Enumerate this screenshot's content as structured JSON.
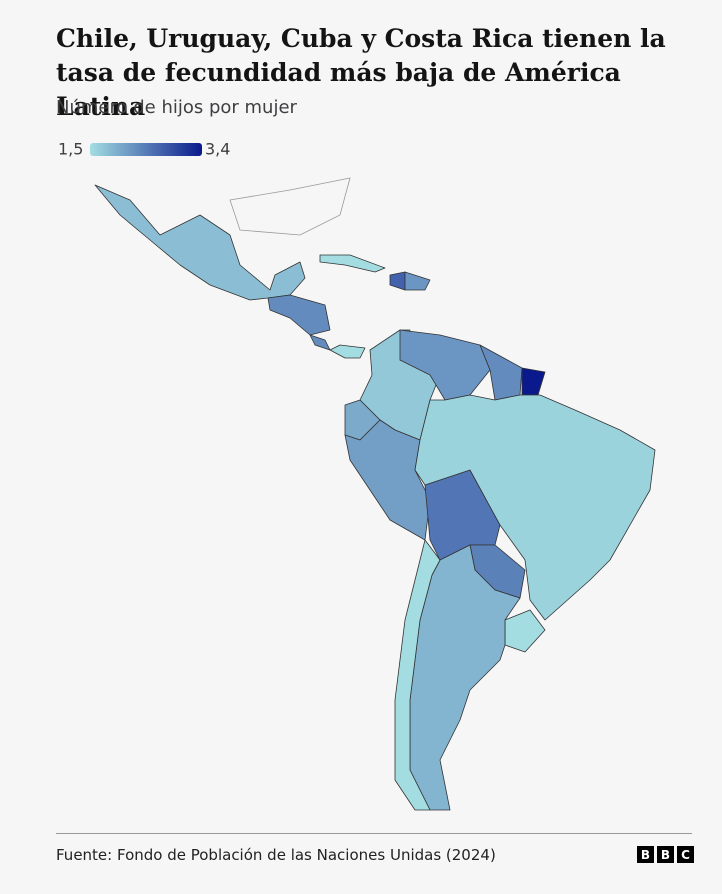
{
  "header": {
    "title": "Chile, Uruguay, Cuba y Costa Rica tienen la tasa de fecundidad más baja de América Latina",
    "subtitle": "Número de hijos por mujer"
  },
  "map": {
    "type": "choropleth",
    "legend": {
      "min": {
        "value": 1.5,
        "label": "1,5"
      },
      "max": {
        "value": 3.4,
        "label": "3,4"
      },
      "low_color": "#a3dde2",
      "high_color": "#0a1a8c"
    },
    "values": [
      1.8,
      2.3,
      1.5,
      2.3,
      1.5,
      2.7,
      2.2,
      1.7,
      2.2,
      2.3,
      3.4,
      2.0,
      2.1,
      2.5,
      1.6,
      2.4,
      1.5,
      1.9,
      1.5
    ]
  },
  "footer": {
    "source": "Fuente: Fondo de Población de las Naciones Unidas (2024)",
    "logo": [
      "B",
      "B",
      "C"
    ]
  }
}
